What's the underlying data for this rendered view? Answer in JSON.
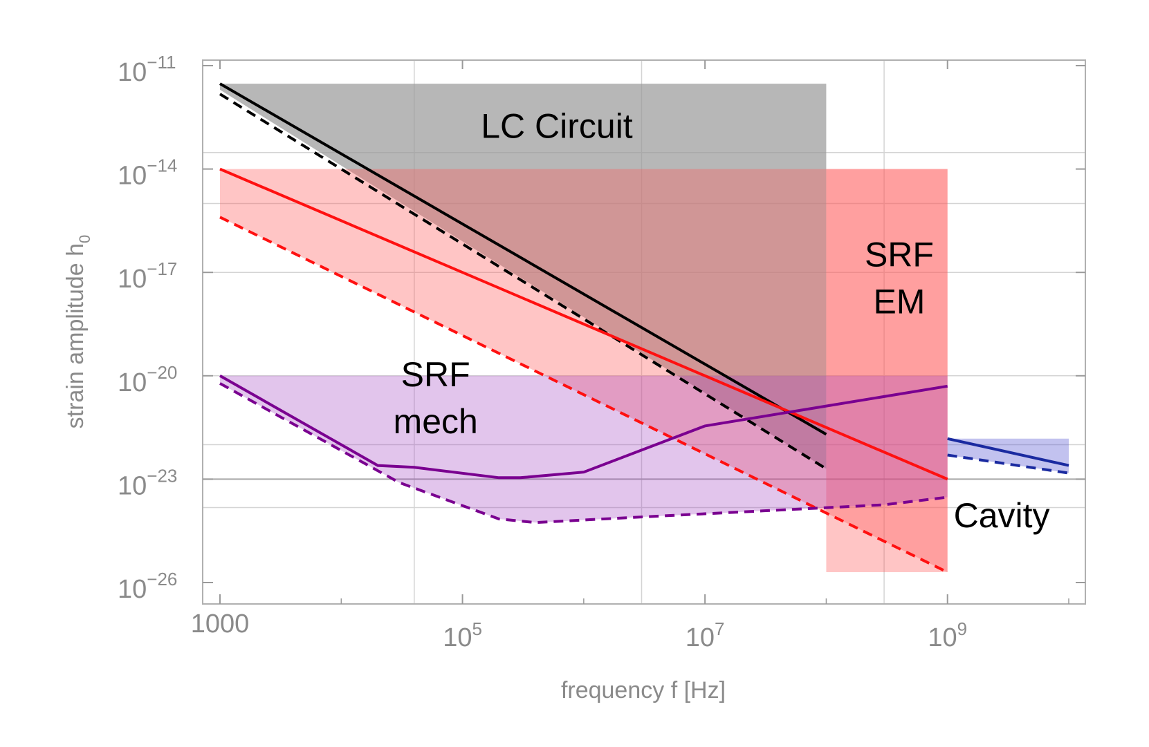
{
  "chart_data": {
    "type": "area",
    "xscale": "log",
    "yscale": "log",
    "xlim": [
      1000,
      10000000000
    ],
    "ylim": [
      1e-26,
      1e-11
    ],
    "xlabel": "frequency f [Hz]",
    "ylabel": "strain amplitude h",
    "ylabel_subscript": "0",
    "x_ticks": [
      {
        "value": 1000,
        "base": "1000",
        "exp": ""
      },
      {
        "value": 100000,
        "base": "10",
        "exp": "5"
      },
      {
        "value": 10000000,
        "base": "10",
        "exp": "7"
      },
      {
        "value": 1000000000,
        "base": "10",
        "exp": "9"
      }
    ],
    "y_ticks": [
      {
        "value": 1e-11,
        "base": "10",
        "exp": "−11"
      },
      {
        "value": 1e-14,
        "base": "10",
        "exp": "−14"
      },
      {
        "value": 1e-17,
        "base": "10",
        "exp": "−17"
      },
      {
        "value": 1e-20,
        "base": "10",
        "exp": "−20"
      },
      {
        "value": 1e-23,
        "base": "10",
        "exp": "−23"
      },
      {
        "value": 1e-26,
        "base": "10",
        "exp": "−26"
      }
    ],
    "x_grid": [
      40000,
      3000000,
      300000000
    ],
    "y_grid": [
      3e-14,
      1e-15,
      1e-17,
      1e-20,
      1e-22,
      1e-23,
      1.5e-24
    ],
    "regions": [
      {
        "name": "lc-circuit",
        "label": [
          "LC Circuit"
        ],
        "color": "#999999",
        "opacity": 0.7,
        "fill_upper": [
          [
            1000,
            3e-12
          ],
          [
            100000000,
            3e-12
          ]
        ],
        "fill_lower": [
          [
            100000000,
            2e-23
          ],
          [
            1000,
            2e-12
          ]
        ],
        "solid": [
          [
            1000,
            3e-12
          ],
          [
            100000000,
            2e-22
          ]
        ],
        "dashed": [
          [
            1000,
            1.5e-12
          ],
          [
            100000000,
            2e-23
          ]
        ],
        "line_color": "#000000",
        "label_pos": [
          600000,
          8e-14
        ]
      },
      {
        "name": "srf-em",
        "label": [
          "SRF",
          "EM"
        ],
        "color": "#ff5a5a",
        "opacity": 0.35,
        "fill_upper": [
          [
            1000,
            1e-14
          ],
          [
            1000000000,
            1e-14
          ]
        ],
        "fill_lower": [
          [
            1000000000,
            2e-26
          ],
          [
            1000,
            4e-16
          ]
        ],
        "rect_block": [
          [
            100000000,
            1e-14
          ],
          [
            1000000000,
            2e-26
          ]
        ],
        "solid": [
          [
            1000,
            1e-14
          ],
          [
            1000000000,
            1e-23
          ]
        ],
        "dashed": [
          [
            1000,
            4e-16
          ],
          [
            1000000000,
            2e-26
          ]
        ],
        "line_color": "#ff1010",
        "label_pos": [
          400000000,
          1.5e-17
        ]
      },
      {
        "name": "srf-mech",
        "label": [
          "SRF",
          "mech"
        ],
        "color": "#a040c0",
        "opacity": 0.3,
        "fill_upper": [
          [
            1000,
            1e-20
          ],
          [
            1000000000,
            1e-20
          ]
        ],
        "fill_lower": [
          [
            1000000000,
            3e-24
          ],
          [
            300000000,
            1.8e-24
          ],
          [
            30000000,
            1.2e-24
          ],
          [
            3000000,
            8e-25
          ],
          [
            400000,
            5.5e-25
          ],
          [
            200000,
            7e-25
          ],
          [
            30000,
            8e-24
          ],
          [
            1000,
            6e-21
          ]
        ],
        "solid": [
          [
            1000,
            1e-20
          ],
          [
            20000,
            2.5e-23
          ],
          [
            40000,
            2.2e-23
          ],
          [
            200000,
            1.1e-23
          ],
          [
            300000,
            1.1e-23
          ],
          [
            1000000,
            1.6e-23
          ],
          [
            10000000,
            3.5e-22
          ],
          [
            1000000000,
            5e-21
          ]
        ],
        "dashed": [
          [
            1000,
            6e-21
          ],
          [
            30000,
            8e-24
          ],
          [
            200000,
            7e-25
          ],
          [
            400000,
            5.5e-25
          ],
          [
            3000000,
            8e-25
          ],
          [
            30000000,
            1.2e-24
          ],
          [
            300000000,
            1.8e-24
          ],
          [
            1000000000,
            3e-24
          ]
        ],
        "line_color": "#7a0090",
        "label_pos": [
          60000,
          5e-21
        ]
      },
      {
        "name": "cavity",
        "label": [
          "Cavity"
        ],
        "color": "#5050d0",
        "opacity": 0.35,
        "fill_upper": [
          [
            1000000000,
            1.5e-22
          ],
          [
            10000000000,
            1.5e-22
          ]
        ],
        "fill_lower": [
          [
            10000000000,
            1.5e-23
          ],
          [
            1000000000,
            5e-23
          ]
        ],
        "solid": [
          [
            1000000000,
            1.5e-22
          ],
          [
            10000000000,
            2.5e-23
          ]
        ],
        "dashed": [
          [
            1000000000,
            5e-23
          ],
          [
            10000000000,
            1.5e-23
          ]
        ],
        "line_color": "#1a2aa0",
        "label_pos": [
          2800000000,
          4e-25
        ]
      }
    ]
  }
}
